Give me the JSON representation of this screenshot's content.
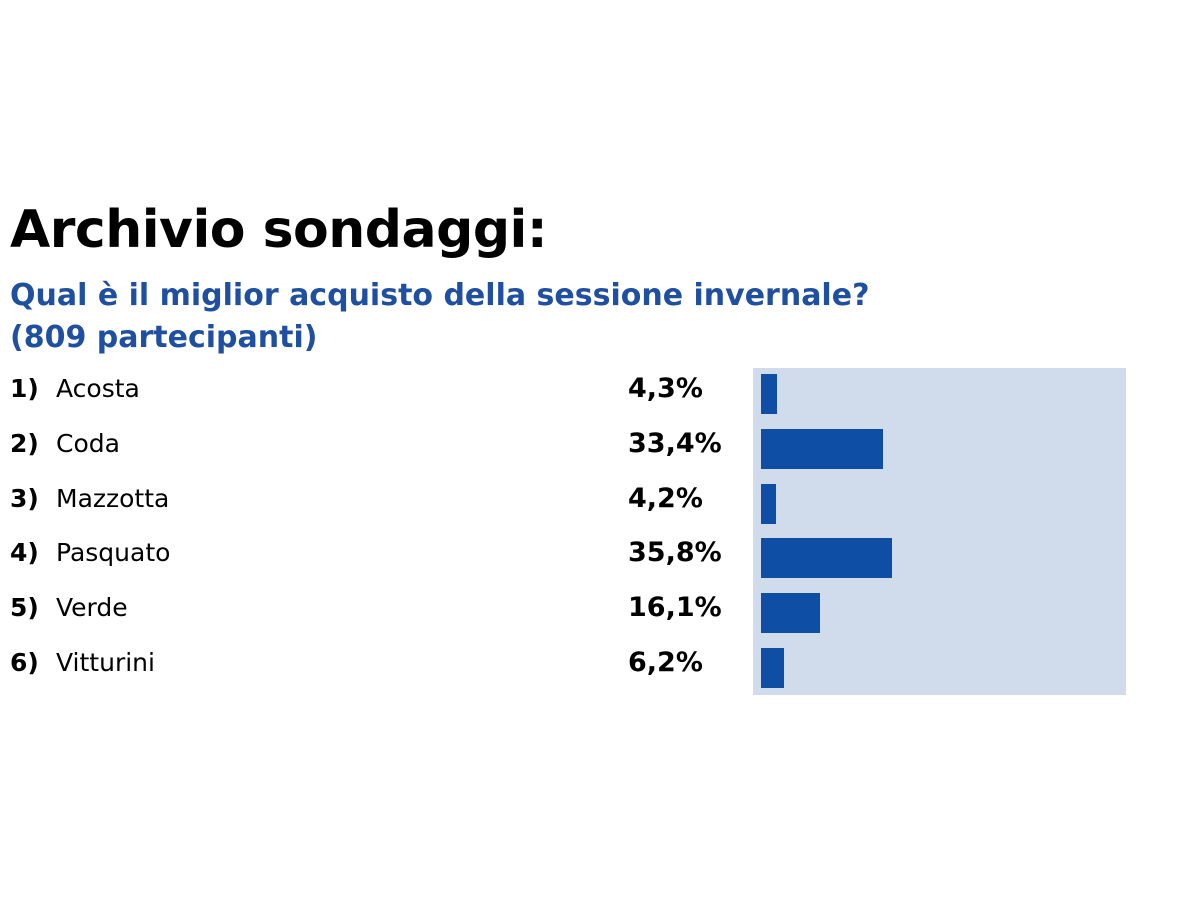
{
  "title": "Archivio sondaggi:",
  "question_line1": "Qual è il miglior acquisto della sessione invernale?",
  "question_line2": "(809 partecipanti)",
  "colors": {
    "bar": "#0e4ea4",
    "panel": "#d0dcec",
    "question": "#1f4fa0"
  },
  "chart_data": {
    "type": "bar",
    "orientation": "horizontal",
    "categories": [
      "Acosta",
      "Coda",
      "Mazzotta",
      "Pasquato",
      "Verde",
      "Vitturini"
    ],
    "values": [
      4.3,
      33.4,
      4.2,
      35.8,
      16.1,
      6.2
    ],
    "unit": "%",
    "items": [
      {
        "num": "1)",
        "name": "Acosta",
        "pct": "4,3%",
        "value": 4.3
      },
      {
        "num": "2)",
        "name": "Coda",
        "pct": "33,4%",
        "value": 33.4
      },
      {
        "num": "3)",
        "name": "Mazzotta",
        "pct": "4,2%",
        "value": 4.2
      },
      {
        "num": "4)",
        "name": "Pasquato",
        "pct": "35,8%",
        "value": 35.8
      },
      {
        "num": "5)",
        "name": "Verde",
        "pct": "16,1%",
        "value": 16.1
      },
      {
        "num": "6)",
        "name": "Vitturini",
        "pct": "6,2%",
        "value": 6.2
      }
    ],
    "xlim": [
      0,
      100
    ],
    "grid": false,
    "legend": "none"
  }
}
